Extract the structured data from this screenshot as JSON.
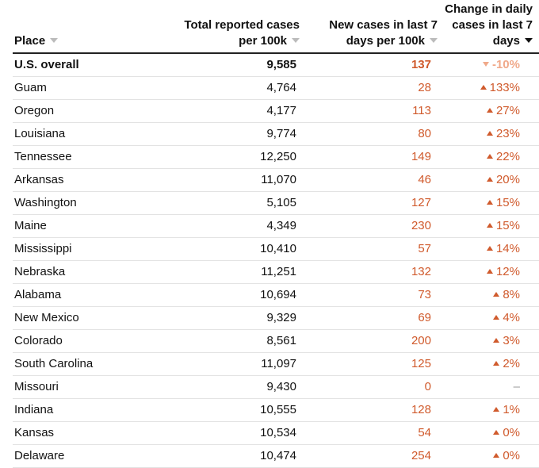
{
  "colors": {
    "accent": "#d05a2c",
    "accent_light": "#f0a98a",
    "text": "#111111"
  },
  "headers": {
    "place": "Place",
    "total_line1": "Total reported cases",
    "total_line2": "per 100k",
    "new_line1": "New cases in last 7",
    "new_line2": "days per 100k",
    "change_line1": "Change in daily",
    "change_line2": "cases in last 7",
    "change_line3": "days"
  },
  "rows": [
    {
      "place": "U.S. overall",
      "total": "9,585",
      "new": "137",
      "change": "-10%",
      "dir": "down"
    },
    {
      "place": "Guam",
      "total": "4,764",
      "new": "28",
      "change": "133%",
      "dir": "up"
    },
    {
      "place": "Oregon",
      "total": "4,177",
      "new": "113",
      "change": "27%",
      "dir": "up"
    },
    {
      "place": "Louisiana",
      "total": "9,774",
      "new": "80",
      "change": "23%",
      "dir": "up"
    },
    {
      "place": "Tennessee",
      "total": "12,250",
      "new": "149",
      "change": "22%",
      "dir": "up"
    },
    {
      "place": "Arkansas",
      "total": "11,070",
      "new": "46",
      "change": "20%",
      "dir": "up"
    },
    {
      "place": "Washington",
      "total": "5,105",
      "new": "127",
      "change": "15%",
      "dir": "up"
    },
    {
      "place": "Maine",
      "total": "4,349",
      "new": "230",
      "change": "15%",
      "dir": "up"
    },
    {
      "place": "Mississippi",
      "total": "10,410",
      "new": "57",
      "change": "14%",
      "dir": "up"
    },
    {
      "place": "Nebraska",
      "total": "11,251",
      "new": "132",
      "change": "12%",
      "dir": "up"
    },
    {
      "place": "Alabama",
      "total": "10,694",
      "new": "73",
      "change": "8%",
      "dir": "up"
    },
    {
      "place": "New Mexico",
      "total": "9,329",
      "new": "69",
      "change": "4%",
      "dir": "up"
    },
    {
      "place": "Colorado",
      "total": "8,561",
      "new": "200",
      "change": "3%",
      "dir": "up"
    },
    {
      "place": "South Carolina",
      "total": "11,097",
      "new": "125",
      "change": "2%",
      "dir": "up"
    },
    {
      "place": "Missouri",
      "total": "9,430",
      "new": "0",
      "change": "–",
      "dir": "none"
    },
    {
      "place": "Indiana",
      "total": "10,555",
      "new": "128",
      "change": "1%",
      "dir": "up"
    },
    {
      "place": "Kansas",
      "total": "10,534",
      "new": "54",
      "change": "0%",
      "dir": "up"
    },
    {
      "place": "Delaware",
      "total": "10,474",
      "new": "254",
      "change": "0%",
      "dir": "up"
    }
  ]
}
